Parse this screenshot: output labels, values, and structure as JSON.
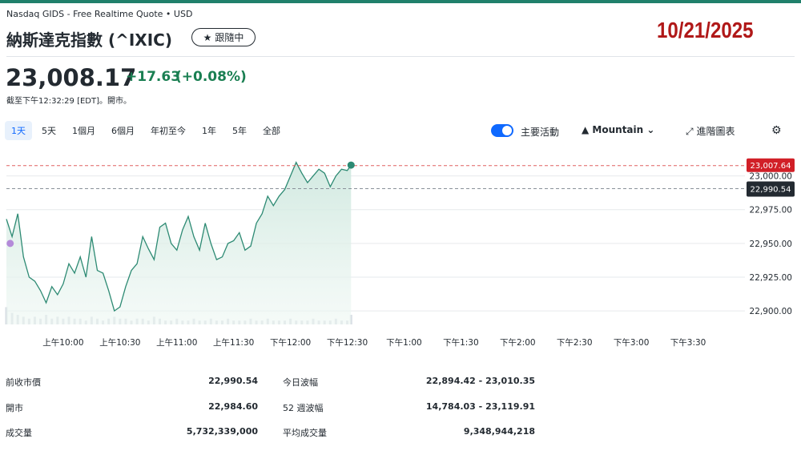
{
  "header": {
    "source": "Nasdaq GIDS - Free Realtime Quote • USD",
    "title": "納斯達克指數 (^IXIC)",
    "follow_label": "跟隨中",
    "date_stamp": "10/21/2025"
  },
  "quote": {
    "price": "23,008.17",
    "change": "+17.63",
    "change_pct": "(+0.08%)",
    "as_of": "截至下午12:32:29 [EDT]。開市。",
    "up_color": "#1a7f52"
  },
  "toolbar": {
    "ranges": [
      "1天",
      "5天",
      "1個月",
      "6個月",
      "年初至今",
      "1年",
      "5年",
      "全部"
    ],
    "active_range": "1天",
    "events_label": "主要活動",
    "chart_type": "Mountain",
    "advanced_label": "進階圖表",
    "icons": {
      "follow": "star-icon",
      "chart_type": "mountain-icon",
      "dropdown": "chevron-down-icon",
      "advanced": "expand-icon",
      "settings": "gear-icon"
    }
  },
  "chart_data": {
    "type": "area",
    "x_tick_labels": [
      "上午10:00",
      "上午10:30",
      "上午11:00",
      "上午11:30",
      "下午12:00",
      "下午12:30",
      "下午1:00",
      "下午1:30",
      "下午2:00",
      "下午2:30",
      "下午3:00",
      "下午3:30"
    ],
    "y_tick_labels": [
      "23,000.00",
      "22,975.00",
      "22,950.00",
      "22,925.00",
      "22,900.00"
    ],
    "y_ticks": [
      23000,
      22975,
      22950,
      22925,
      22900
    ],
    "ylim": [
      22890,
      23014
    ],
    "session": {
      "start": "09:30",
      "end": "16:00"
    },
    "current_label": "23,007.64",
    "current_value": 23007.64,
    "prev_close_label": "22,990.54",
    "prev_close_value": 22990.54,
    "series": [
      {
        "x": [
          "09:30",
          "09:33",
          "09:36",
          "09:39",
          "09:42",
          "09:45",
          "09:48",
          "09:51",
          "09:54",
          "09:57",
          "10:00",
          "10:03",
          "10:06",
          "10:09",
          "10:12",
          "10:15",
          "10:18",
          "10:21",
          "10:24",
          "10:27",
          "10:30",
          "10:33",
          "10:36",
          "10:39",
          "10:42",
          "10:45",
          "10:48",
          "10:51",
          "10:54",
          "10:57",
          "11:00",
          "11:03",
          "11:06",
          "11:09",
          "11:12",
          "11:15",
          "11:18",
          "11:21",
          "11:24",
          "11:27",
          "11:30",
          "11:33",
          "11:36",
          "11:39",
          "11:42",
          "11:45",
          "11:48",
          "11:51",
          "11:54",
          "11:57",
          "12:00",
          "12:03",
          "12:06",
          "12:09",
          "12:12",
          "12:15",
          "12:18",
          "12:21",
          "12:24",
          "12:27",
          "12:30",
          "12:32"
        ],
        "values": [
          22968,
          22955,
          22972,
          22940,
          22925,
          22922,
          22915,
          22906,
          22918,
          22912,
          22920,
          22935,
          22928,
          22940,
          22925,
          22955,
          22930,
          22928,
          22915,
          22900,
          22903,
          22918,
          22930,
          22935,
          22955,
          22946,
          22938,
          22962,
          22965,
          22950,
          22945,
          22960,
          22970,
          22955,
          22945,
          22965,
          22950,
          22938,
          22940,
          22950,
          22952,
          22958,
          22945,
          22948,
          22965,
          22972,
          22985,
          22978,
          22985,
          22990,
          23000,
          23010,
          23002,
          22995,
          23000,
          23005,
          23002,
          22992,
          23000,
          23005,
          23004,
          23008
        ]
      }
    ],
    "volume": [
      9,
      6,
      5,
      4,
      3,
      4,
      3,
      5,
      3,
      4,
      3,
      4,
      3,
      3,
      2,
      4,
      3,
      2,
      3,
      4,
      3,
      3,
      2,
      3,
      3,
      2,
      4,
      3,
      2,
      2,
      3,
      2,
      2,
      3,
      2,
      2,
      3,
      2,
      2,
      3,
      2,
      2,
      2,
      3,
      2,
      2,
      3,
      2,
      2,
      2,
      3,
      2,
      2,
      2,
      3,
      2,
      2,
      2,
      3,
      2,
      2,
      5
    ],
    "highlight_time": "09:32",
    "highlight_value": 22950
  },
  "stats": {
    "left": [
      {
        "label": "前收市價",
        "value": "22,990.54"
      },
      {
        "label": "開市",
        "value": "22,984.60"
      },
      {
        "label": "成交量",
        "value": "5,732,339,000"
      }
    ],
    "right": [
      {
        "label": "今日波幅",
        "value": "22,894.42 - 23,010.35"
      },
      {
        "label": "52 週波幅",
        "value": "14,784.03 - 23,119.91"
      },
      {
        "label": "平均成交量",
        "value": "9,348,944,218"
      }
    ]
  },
  "colors": {
    "line": "#2d8a73",
    "area_top": "#cfe8df",
    "current_badge": "#d11f27",
    "prev_badge": "#232a31",
    "stamp": "#b01818"
  }
}
